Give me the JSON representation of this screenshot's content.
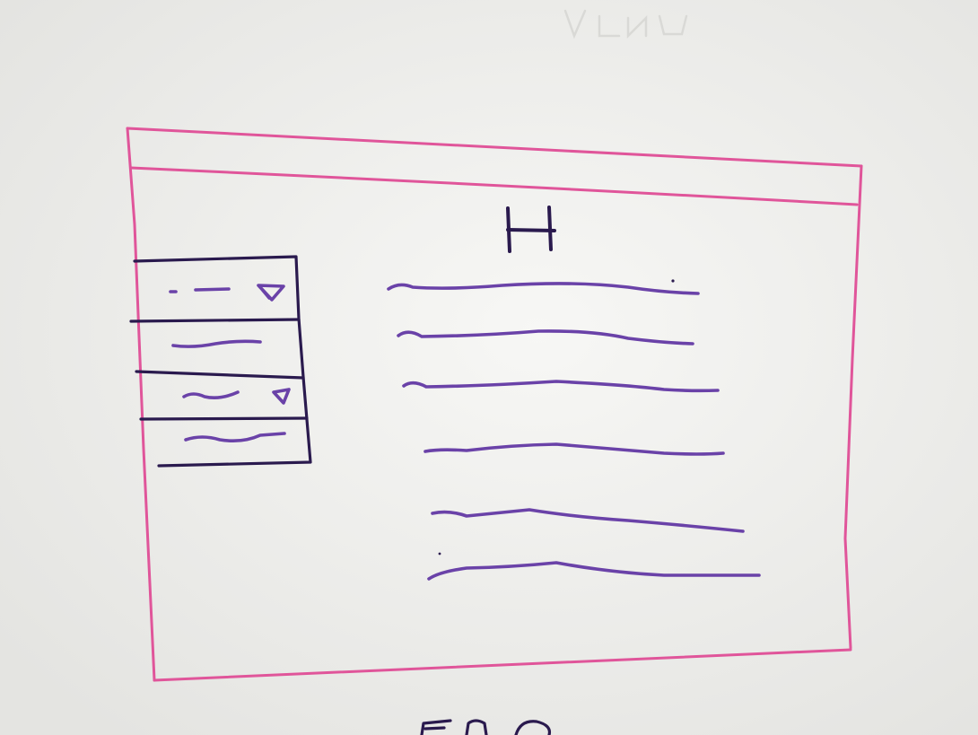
{
  "whiteboard": {
    "ink_colors": {
      "frame": "#e0559a",
      "sidebar": "#2a1a4e",
      "content": "#6a42a8"
    },
    "heading_letter": "H",
    "sidebar": {
      "items": [
        {
          "has_dropdown": true
        },
        {
          "has_dropdown": false
        },
        {
          "has_dropdown": true
        },
        {
          "has_dropdown": false
        }
      ]
    },
    "content": {
      "text_lines": 6
    }
  }
}
